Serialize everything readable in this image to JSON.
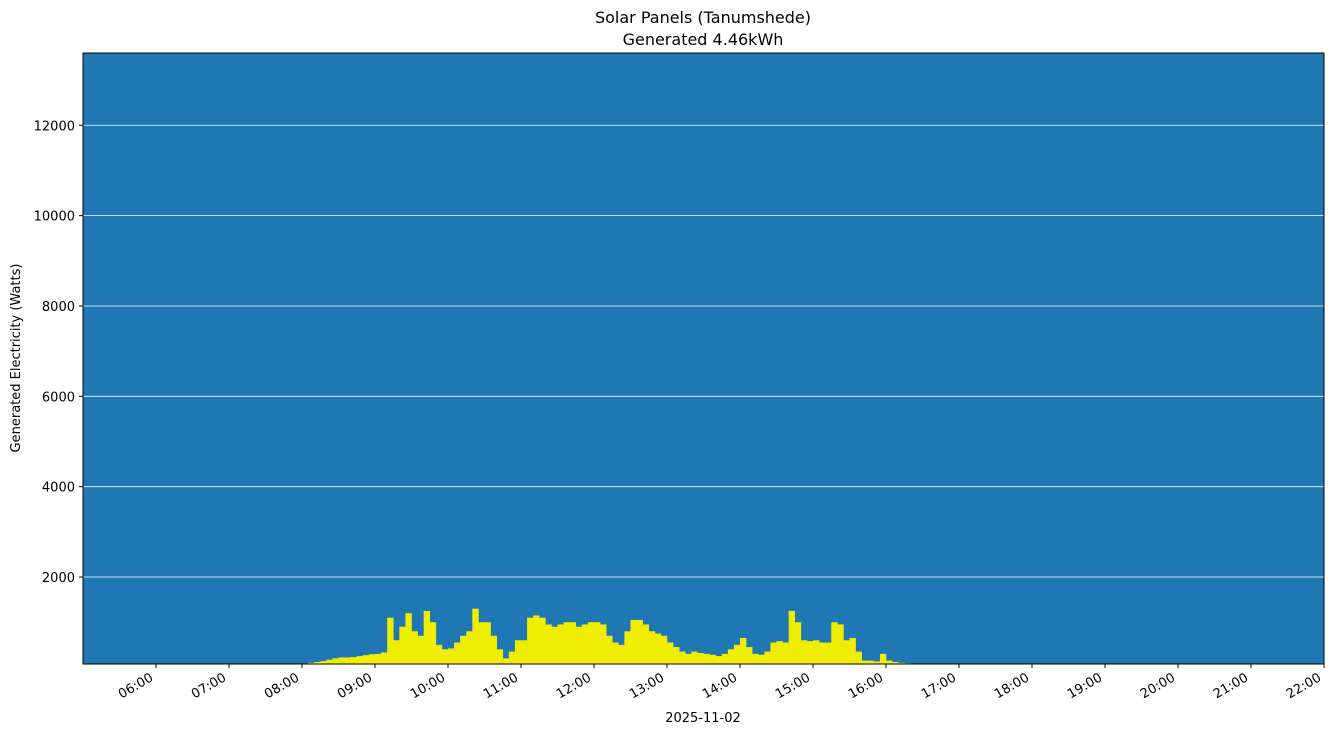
{
  "chart_data": {
    "type": "bar",
    "title": "Solar Panels (Tanumshede)",
    "subtitle": "Generated 4.46kWh",
    "xlabel": "2025-11-02",
    "ylabel": "Generated Electricity (Watts)",
    "background": "#1f77b4",
    "grid": true,
    "grid_color": "#ffffff",
    "xlim": [
      "05:00",
      "22:00"
    ],
    "xticks": [
      "06:00",
      "07:00",
      "08:00",
      "09:00",
      "10:00",
      "11:00",
      "12:00",
      "13:00",
      "14:00",
      "15:00",
      "16:00",
      "17:00",
      "18:00",
      "19:00",
      "20:00",
      "21:00",
      "22:00"
    ],
    "ylim": [
      75,
      13600
    ],
    "yticks": [
      2000,
      4000,
      6000,
      8000,
      10000,
      12000
    ],
    "series": [
      {
        "name": "Generated",
        "color": "#f0ee00",
        "x": [
          "07:50",
          "07:55",
          "08:00",
          "08:05",
          "08:10",
          "08:15",
          "08:20",
          "08:25",
          "08:30",
          "08:35",
          "08:40",
          "08:45",
          "08:50",
          "08:55",
          "09:00",
          "09:05",
          "09:10",
          "09:15",
          "09:20",
          "09:25",
          "09:30",
          "09:35",
          "09:40",
          "09:45",
          "09:50",
          "09:55",
          "10:00",
          "10:05",
          "10:10",
          "10:15",
          "10:20",
          "10:25",
          "10:30",
          "10:35",
          "10:40",
          "10:45",
          "10:50",
          "10:55",
          "11:00",
          "11:05",
          "11:10",
          "11:15",
          "11:20",
          "11:25",
          "11:30",
          "11:35",
          "11:40",
          "11:45",
          "11:50",
          "11:55",
          "12:00",
          "12:05",
          "12:10",
          "12:15",
          "12:20",
          "12:25",
          "12:30",
          "12:35",
          "12:40",
          "12:45",
          "12:50",
          "12:55",
          "13:00",
          "13:05",
          "13:10",
          "13:15",
          "13:20",
          "13:25",
          "13:30",
          "13:35",
          "13:40",
          "13:45",
          "13:50",
          "13:55",
          "14:00",
          "14:05",
          "14:10",
          "14:15",
          "14:20",
          "14:25",
          "14:30",
          "14:35",
          "14:40",
          "14:45",
          "14:50",
          "14:55",
          "15:00",
          "15:05",
          "15:10",
          "15:15",
          "15:20",
          "15:25",
          "15:30",
          "15:35",
          "15:40",
          "15:45",
          "15:50",
          "15:55",
          "16:00",
          "16:05",
          "16:10",
          "16:15",
          "16:20",
          "16:25",
          "16:30",
          "16:35",
          "16:40",
          "16:45"
        ],
        "values": [
          80,
          70,
          80,
          100,
          120,
          140,
          170,
          200,
          220,
          220,
          230,
          250,
          270,
          290,
          300,
          330,
          1100,
          600,
          900,
          1200,
          800,
          700,
          1250,
          1000,
          500,
          400,
          420,
          550,
          700,
          800,
          1300,
          1000,
          1000,
          700,
          400,
          200,
          350,
          600,
          600,
          1100,
          1150,
          1100,
          950,
          900,
          950,
          1000,
          1000,
          900,
          950,
          1000,
          1000,
          950,
          700,
          550,
          500,
          800,
          1050,
          1050,
          950,
          800,
          750,
          700,
          550,
          450,
          350,
          300,
          350,
          320,
          300,
          280,
          250,
          300,
          400,
          500,
          650,
          450,
          300,
          280,
          350,
          550,
          580,
          550,
          1250,
          1000,
          600,
          580,
          600,
          550,
          550,
          1000,
          950,
          600,
          650,
          350,
          150,
          150,
          130,
          300,
          150,
          120,
          100,
          90,
          80,
          75,
          70,
          60,
          55,
          50
        ]
      }
    ]
  }
}
